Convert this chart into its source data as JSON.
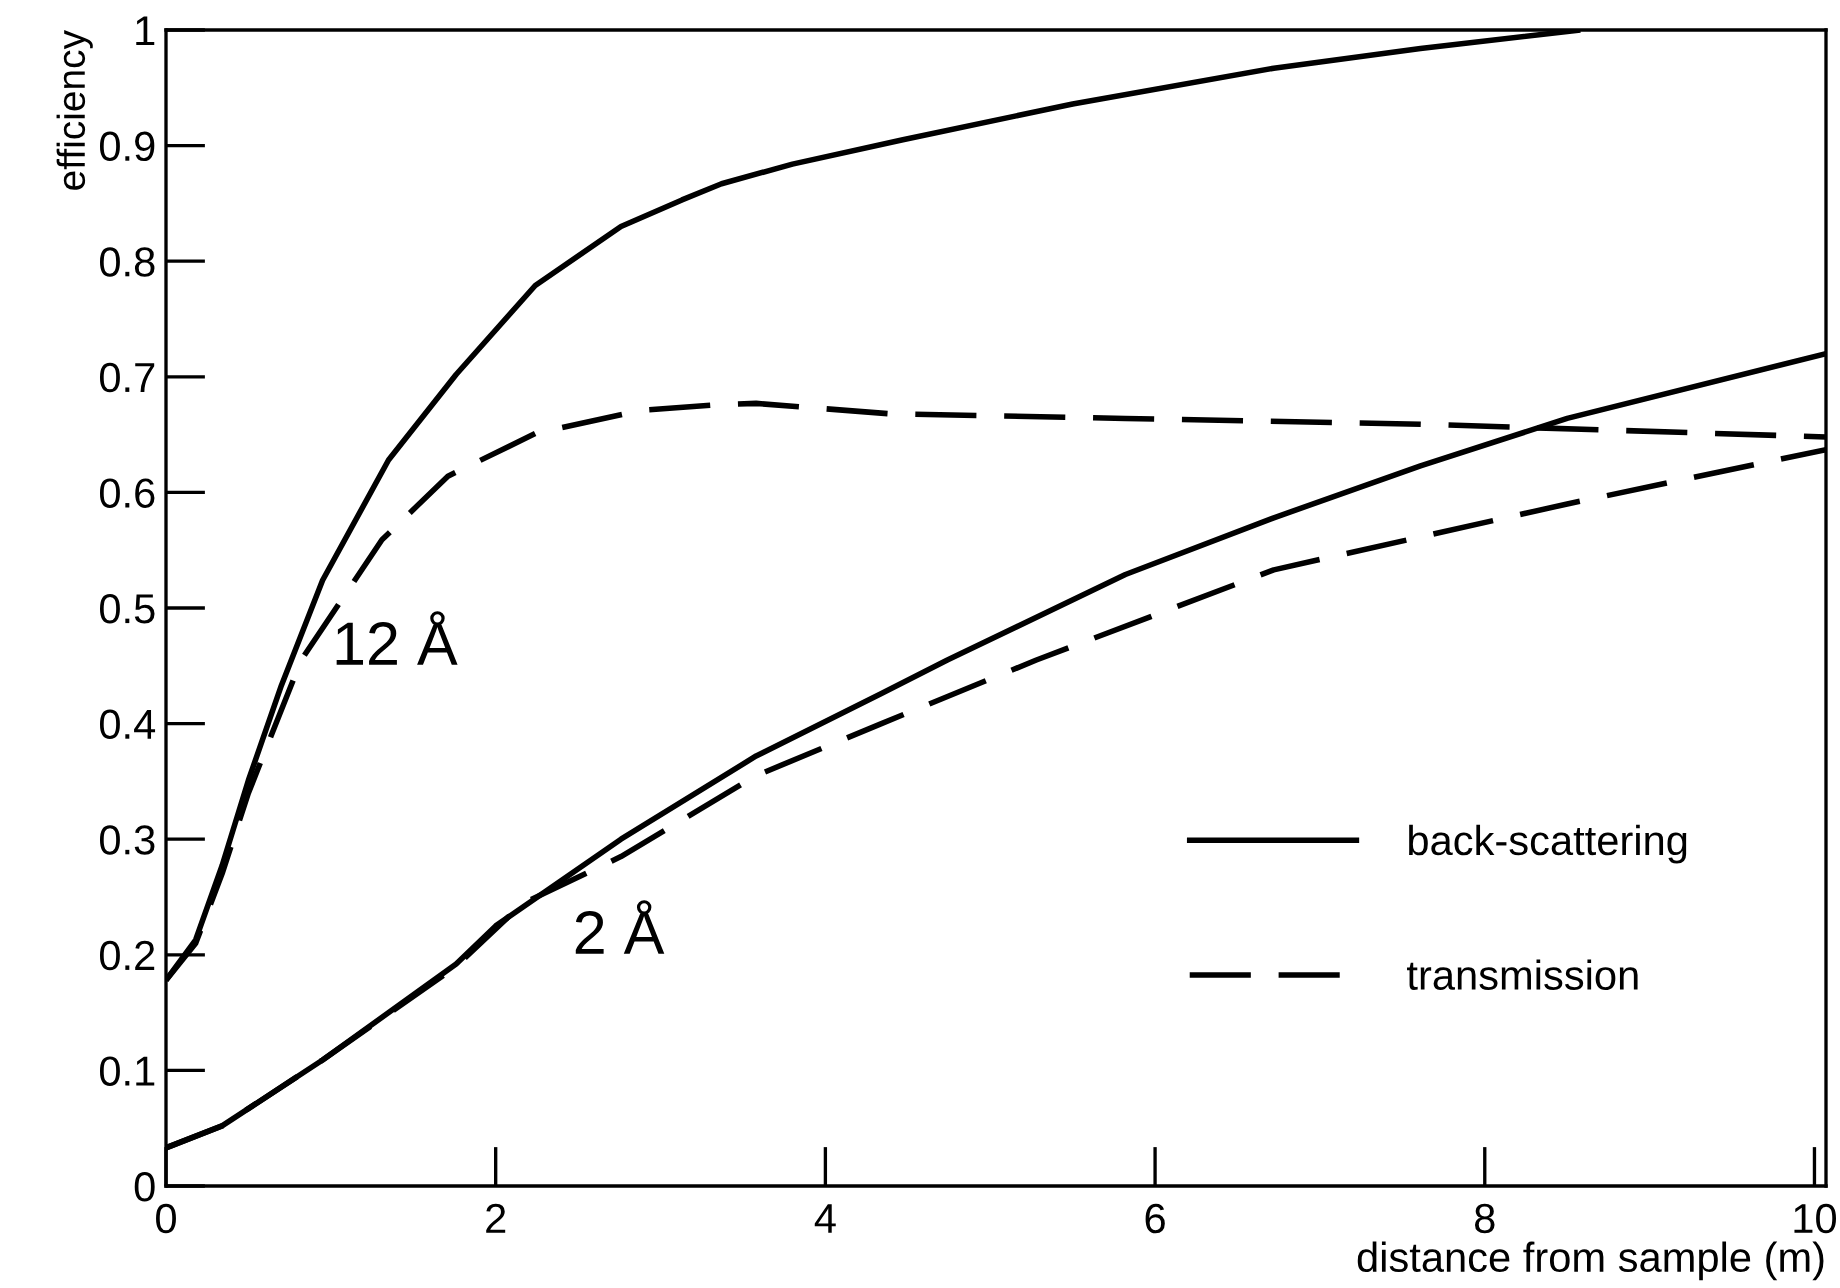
{
  "chart_data": {
    "type": "line",
    "xlabel": "distance from sample (m)",
    "ylabel": "efficiency",
    "xlim": [
      0,
      10.07
    ],
    "ylim": [
      0,
      1
    ],
    "xticks": [
      0,
      2,
      4,
      6,
      8,
      10
    ],
    "yticks": [
      0,
      0.1,
      0.2,
      0.3,
      0.4,
      0.5,
      0.6,
      0.7,
      0.8,
      0.9,
      1
    ],
    "grid": false,
    "legend": "bottom right",
    "marker": "none",
    "series": [
      {
        "name": "back-scattering",
        "color": "#000000",
        "line_style": "solid",
        "x": [
          0,
          0.18,
          0.34,
          0.5,
          0.7,
          0.95,
          1.35,
          1.76,
          2.24,
          2.76,
          3.13,
          3.37,
          3.8,
          4.47,
          5.5,
          6.72,
          7.61,
          8.58
        ],
        "values": [
          0.178,
          0.213,
          0.277,
          0.351,
          0.433,
          0.524,
          0.628,
          0.702,
          0.779,
          0.83,
          0.853,
          0.867,
          0.884,
          0.905,
          0.936,
          0.967,
          0.984,
          1.0
        ]
      },
      {
        "name": "transmission",
        "color": "#000000",
        "line_style": "dashed",
        "x": [
          0,
          0.18,
          0.34,
          0.5,
          0.82,
          1.31,
          1.71,
          2.24,
          2.88,
          3.37,
          3.58,
          4.39,
          5.82,
          7.61,
          10.07
        ],
        "values": [
          0.178,
          0.21,
          0.27,
          0.34,
          0.455,
          0.559,
          0.614,
          0.651,
          0.671,
          0.676,
          0.677,
          0.668,
          0.664,
          0.659,
          0.648
        ]
      },
      {
        "color": "#000000",
        "line_style": "solid",
        "x": [
          0,
          0.34,
          0.95,
          1.76,
          2.0,
          2.76,
          3.58,
          4.34,
          4.74,
          5.82,
          6.72,
          7.61,
          8.5,
          10.07
        ],
        "values": [
          0.033,
          0.052,
          0.109,
          0.192,
          0.225,
          0.3,
          0.372,
          0.426,
          0.455,
          0.529,
          0.578,
          0.623,
          0.664,
          0.72
        ]
      },
      {
        "color": "#000000",
        "line_style": "dashed",
        "x": [
          0,
          0.34,
          0.95,
          1.76,
          2.16,
          2.76,
          3.58,
          4.34,
          5.28,
          6.72,
          8.5,
          10.07
        ],
        "values": [
          0.033,
          0.052,
          0.109,
          0.19,
          0.244,
          0.285,
          0.355,
          0.4,
          0.455,
          0.533,
          0.59,
          0.637
        ]
      }
    ],
    "annotations": [
      "12 Å",
      "2 Å"
    ]
  }
}
